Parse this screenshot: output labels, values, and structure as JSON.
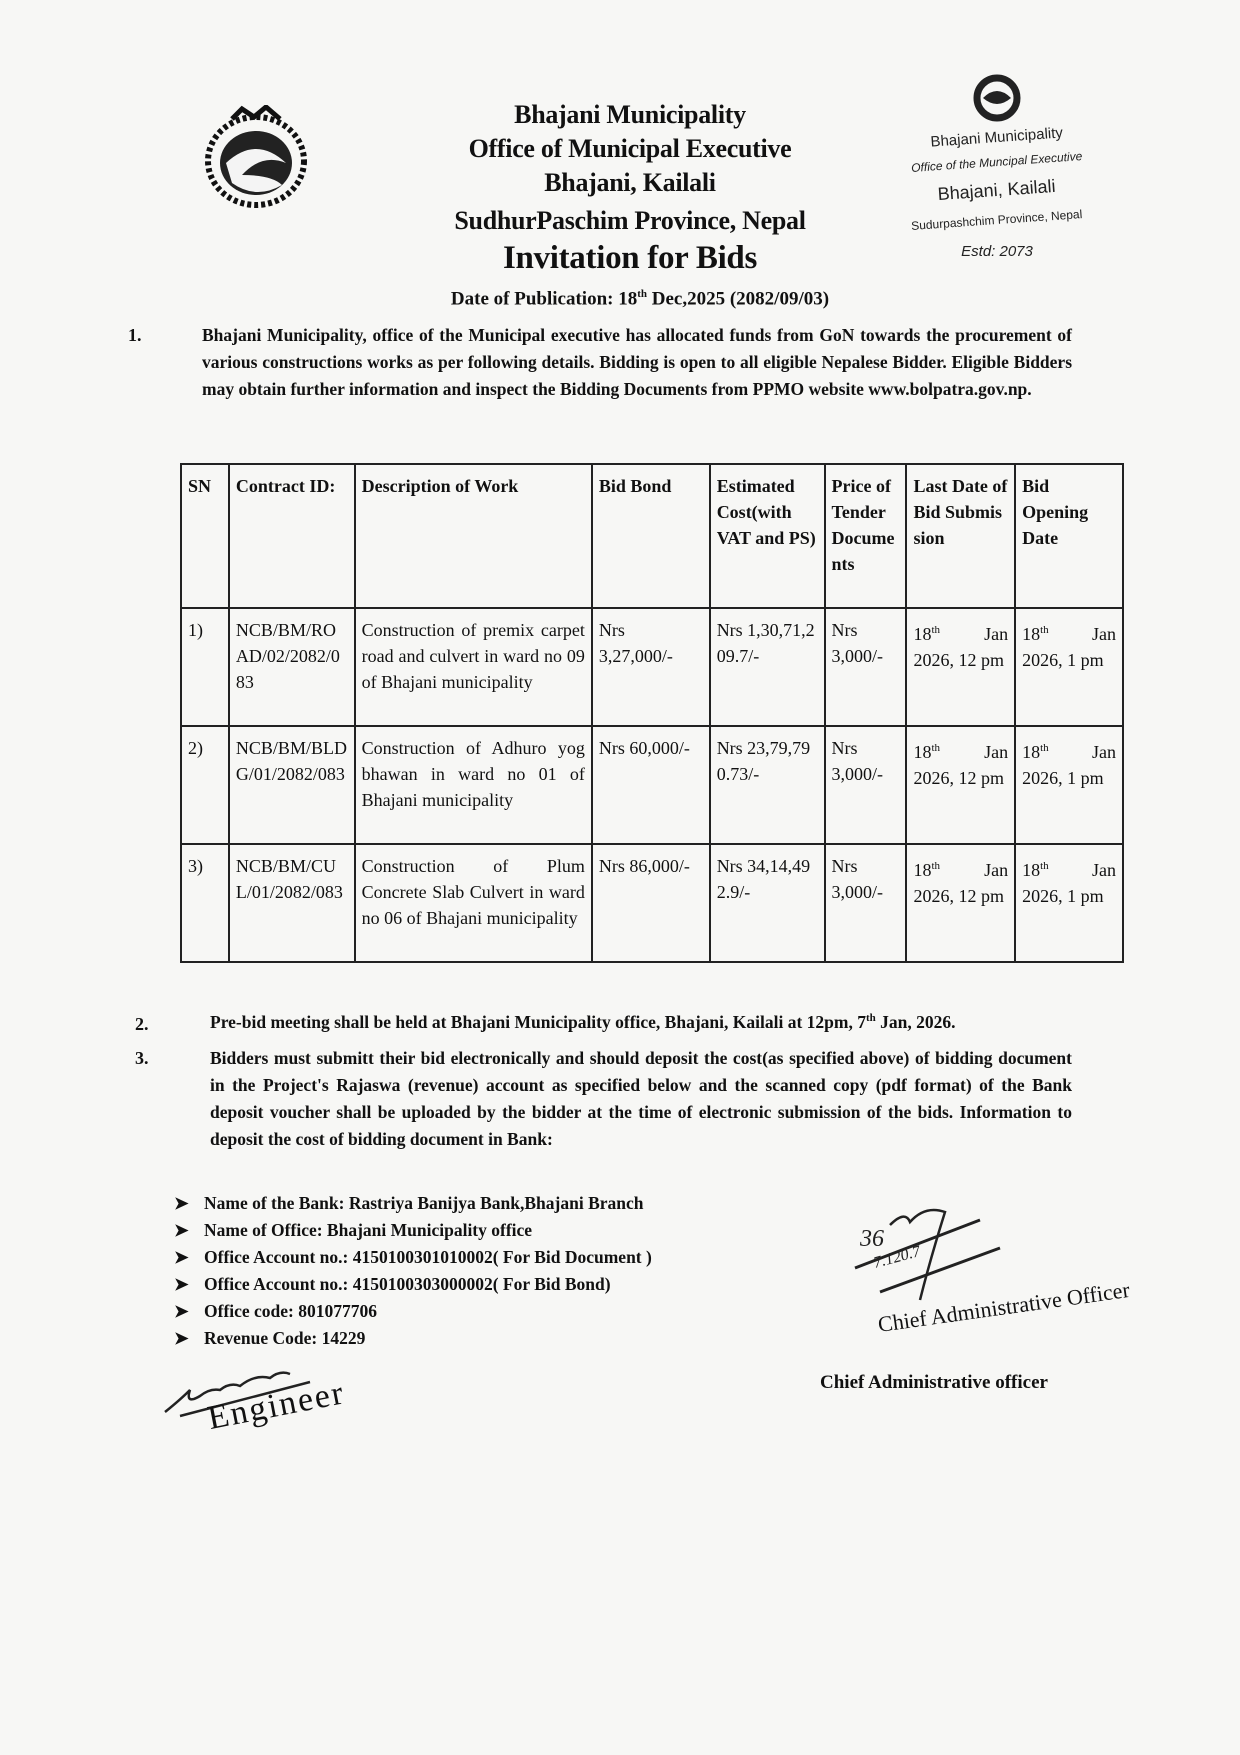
{
  "header": {
    "line1": "Bhajani Municipality",
    "line2": "Office of Municipal Executive",
    "line3": "Bhajani, Kailali",
    "line4": "SudhurPaschim Province, Nepal",
    "title": "Invitation for Bids",
    "pub_label": "Date of Publication: 18",
    "pub_sup": "th",
    "pub_rest": " Dec,2025 (2082/09/03)"
  },
  "stamp": {
    "line1": "Bhajani Municipality",
    "line2": "Office of the Muncipal Executive",
    "line3": "Bhajani, Kailali",
    "line4": "Sudurpashchim Province, Nepal",
    "line5": "Estd: 2073"
  },
  "para1": {
    "num": "1.",
    "text": "Bhajani Municipality, office of the Municipal executive has allocated funds from GoN towards the procurement of various constructions works as per following details. Bidding is open to all eligible Nepalese Bidder. Eligible Bidders may obtain further information and inspect the Bidding Documents from PPMO website www.bolpatra.gov.np."
  },
  "table": {
    "headers": [
      "SN",
      "Contract ID:",
      "Description of Work",
      "Bid Bond",
      "Estimated Cost(with VAT and PS)",
      "Price of Tender Documents",
      "Last Date of Bid Submission",
      "Bid Opening Date"
    ],
    "rows": [
      {
        "sn": "1)",
        "id": "NCB/BM/ROAD/02/2082/083",
        "desc": "Construction of premix carpet road and culvert in ward no 09 of Bhajani municipality",
        "bond": "Nrs 3,27,000/-",
        "cost": "Nrs 1,30,71,209.7/-",
        "price": "Nrs 3,000/-",
        "last_day": "18",
        "last_rest": " Jan 2026, 12 pm",
        "open_day": "18",
        "open_rest": " Jan 2026, 1 pm"
      },
      {
        "sn": "2)",
        "id": "NCB/BM/BLDG/01/2082/083",
        "desc": "Construction of Adhuro yog bhawan in ward no 01 of Bhajani municipality",
        "bond": "Nrs 60,000/-",
        "cost": "Nrs 23,79,790.73/-",
        "price": "Nrs 3,000/-",
        "last_day": "18",
        "last_rest": " Jan 2026, 12 pm",
        "open_day": "18",
        "open_rest": " Jan 2026, 1 pm"
      },
      {
        "sn": "3)",
        "id": "NCB/BM/CUL/01/2082/083",
        "desc": "Construction of Plum Concrete Slab Culvert in ward no 06 of Bhajani municipality",
        "bond": "Nrs 86,000/-",
        "cost": "Nrs 34,14,492.9/-",
        "price": "Nrs 3,000/-",
        "last_day": "18",
        "last_rest": " Jan 2026, 12 pm",
        "open_day": "18",
        "open_rest": " Jan 2026, 1 pm"
      }
    ],
    "sup": "th"
  },
  "para2": {
    "num": "2.",
    "text_a": "Pre-bid meeting shall be held at Bhajani Municipality office, Bhajani, Kailali at 12pm, 7",
    "sup": "th",
    "text_b": " Jan, 2026."
  },
  "para3": {
    "num": "3.",
    "text": "Bidders must submitt their bid electronically and should deposit the cost(as specified above) of bidding document in the Project's Rajaswa (revenue) account as specified below and the scanned copy (pdf format) of the Bank deposit voucher shall be uploaded by the bidder at the time of electronic submission of the bids. Information to deposit the cost of bidding document in Bank:"
  },
  "bank": {
    "bullet_icon": "arrowhead-right-icon",
    "items": [
      "Name of the Bank: Rastriya Banijya Bank,Bhajani Branch",
      "Name of Office: Bhajani Municipality office",
      "Office Account no.: 4150100301010002( For Bid Document )",
      "Office Account no.: 4150100303000002( For Bid Bond)",
      "Office code: 801077706",
      "Revenue Code: 14229"
    ]
  },
  "signatures": {
    "engineer_stamp": "Engineer",
    "cao_stamp": "Chief Administrative Officer",
    "cao_label": "Chief Administrative officer"
  }
}
